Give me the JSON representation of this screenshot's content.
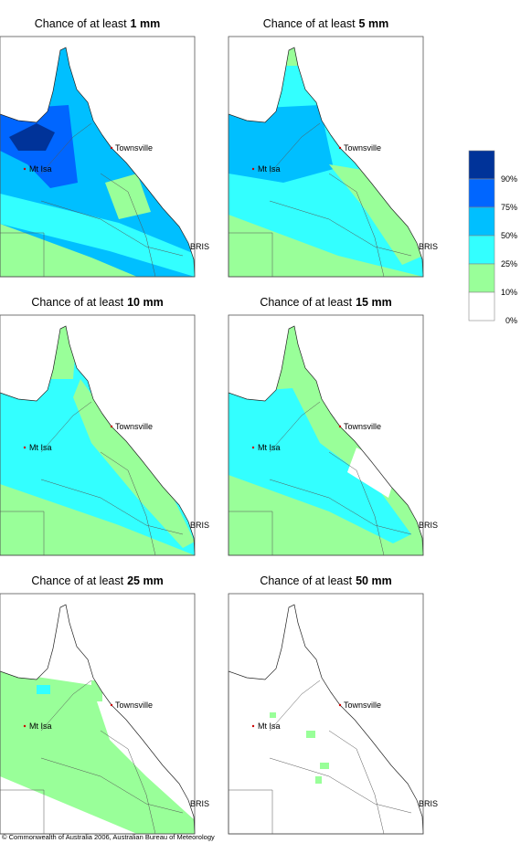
{
  "panels": [
    {
      "title_prefix": "Chance of at least",
      "threshold": "1 mm"
    },
    {
      "title_prefix": "Chance of at least",
      "threshold": "5 mm"
    },
    {
      "title_prefix": "Chance of at least",
      "threshold": "10 mm"
    },
    {
      "title_prefix": "Chance of at least",
      "threshold": "15 mm"
    },
    {
      "title_prefix": "Chance of at least",
      "threshold": "25 mm"
    },
    {
      "title_prefix": "Chance of at least",
      "threshold": "50 mm"
    }
  ],
  "places": {
    "townsville": "Townsville",
    "mt_isa": "Mt Isa",
    "bris": "BRIS"
  },
  "legend": [
    {
      "label": "90%",
      "color": "#003399"
    },
    {
      "label": "75%",
      "color": "#0066ff"
    },
    {
      "label": "50%",
      "color": "#00bfff"
    },
    {
      "label": "25%",
      "color": "#33ffff"
    },
    {
      "label": "10%",
      "color": "#99ff99"
    },
    {
      "label": "0%",
      "color": "#ffffff"
    }
  ],
  "copyright": "© Commonwealth of Australia 2006, Australian Bureau of Meteorology"
}
